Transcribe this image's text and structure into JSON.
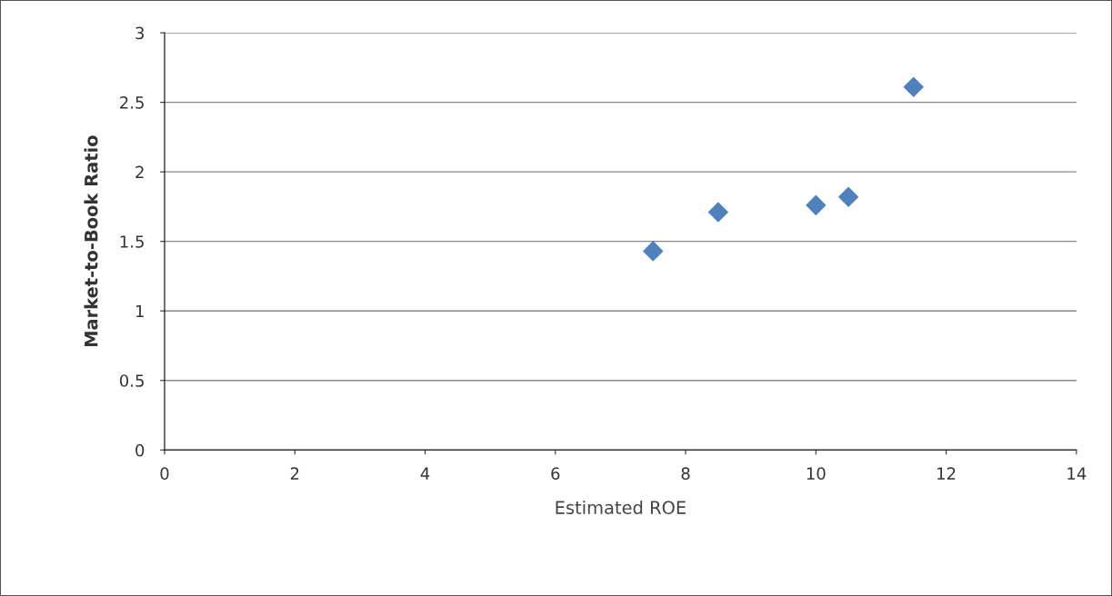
{
  "chart_data": {
    "type": "scatter",
    "xlabel": "Estimated ROE",
    "ylabel": "Market-to-Book Ratio",
    "series": [
      {
        "color": "#4f81bd",
        "x": [
          7.5,
          8.5,
          10,
          10.5,
          11.5
        ],
        "values": [
          1.43,
          1.71,
          1.76,
          1.82,
          2.61
        ]
      }
    ],
    "xlim": [
      0,
      14
    ],
    "xticks": [
      0,
      2,
      4,
      6,
      8,
      10,
      12,
      14
    ],
    "ylim": [
      0,
      3
    ],
    "yticks": [
      0,
      0.5,
      1,
      1.5,
      2,
      2.5,
      3
    ],
    "grid": "y",
    "marker": "diamond"
  }
}
